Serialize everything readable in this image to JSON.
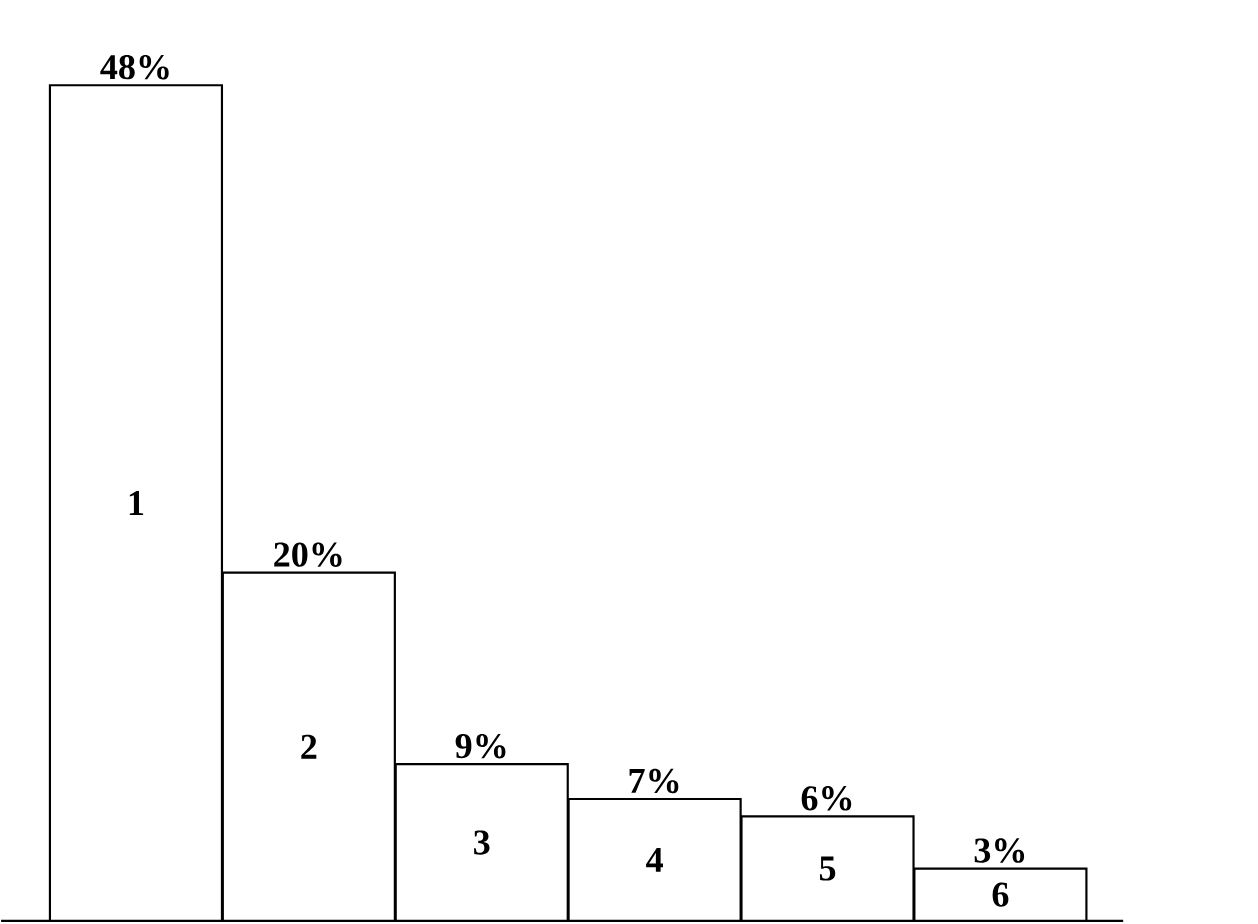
{
  "chart_data": {
    "type": "bar",
    "categories": [
      "1",
      "2",
      "3",
      "4",
      "5",
      "6"
    ],
    "values": [
      48,
      20,
      9,
      7,
      6,
      3
    ],
    "value_labels": [
      "48%",
      "20%",
      "9%",
      "7%",
      "6%",
      "3%"
    ],
    "color": "#ffffff"
  }
}
